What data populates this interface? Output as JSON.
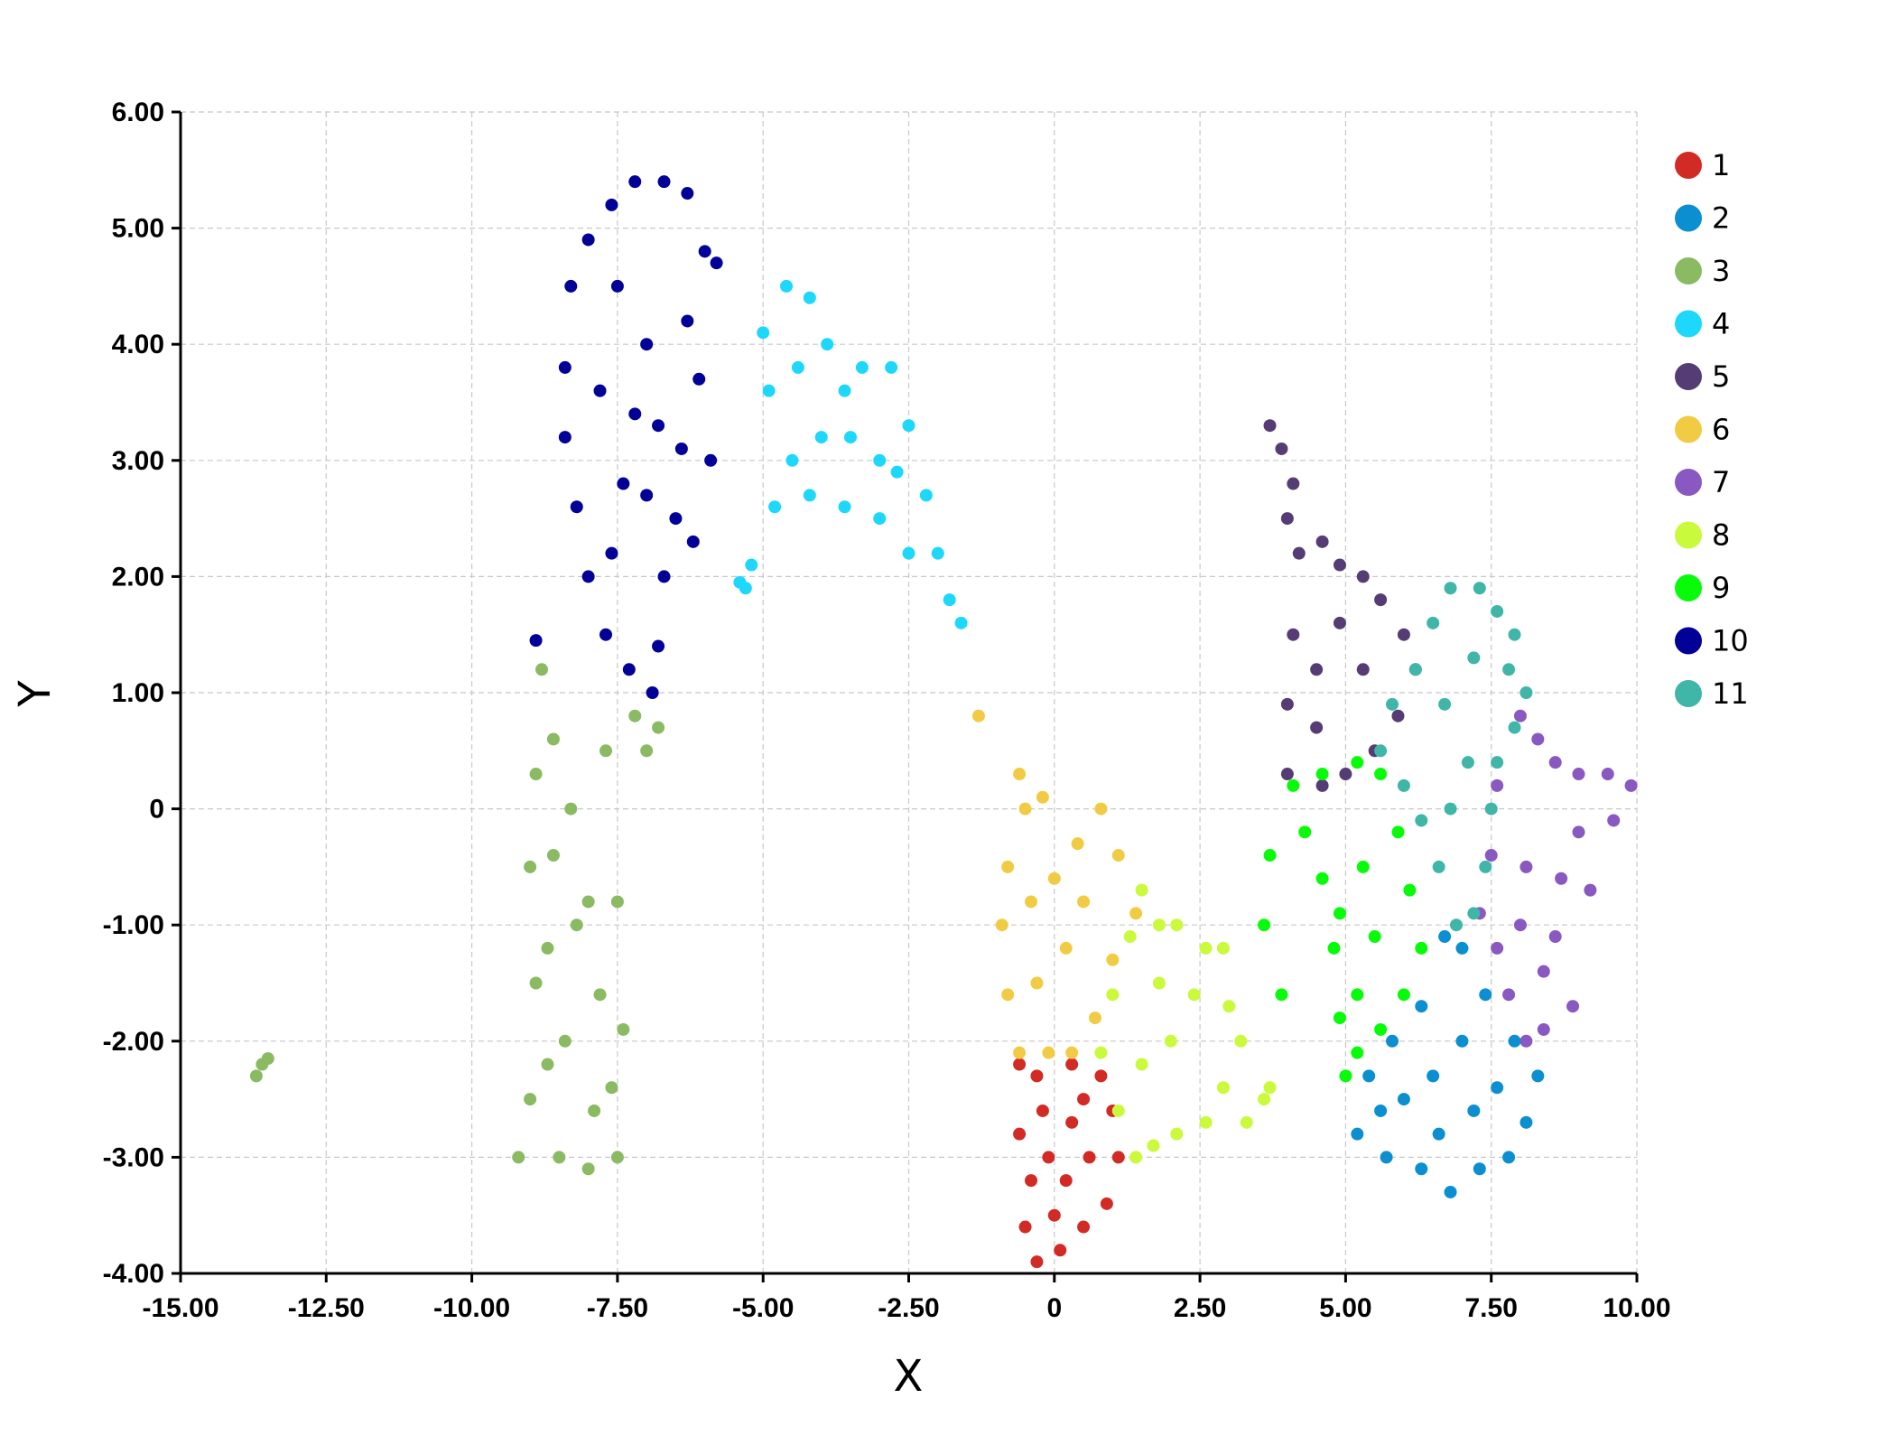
{
  "chart_data": {
    "type": "scatter",
    "title": "",
    "xlabel": "X",
    "ylabel": "Y",
    "xlim": [
      -15,
      10
    ],
    "ylim": [
      -4,
      6
    ],
    "grid": true,
    "legend_position": "right",
    "x_ticks": [
      {
        "value": -15,
        "label": "-15.00"
      },
      {
        "value": -12.5,
        "label": "-12.50"
      },
      {
        "value": -10,
        "label": "-10.00"
      },
      {
        "value": -7.5,
        "label": "-7.50"
      },
      {
        "value": -5,
        "label": "-5.00"
      },
      {
        "value": -2.5,
        "label": "-2.50"
      },
      {
        "value": 0,
        "label": "0"
      },
      {
        "value": 2.5,
        "label": "2.50"
      },
      {
        "value": 5,
        "label": "5.00"
      },
      {
        "value": 7.5,
        "label": "7.50"
      },
      {
        "value": 10,
        "label": "10.00"
      }
    ],
    "y_ticks": [
      {
        "value": 6,
        "label": "6.00"
      },
      {
        "value": 5,
        "label": "5.00"
      },
      {
        "value": 4,
        "label": "4.00"
      },
      {
        "value": 3,
        "label": "3.00"
      },
      {
        "value": 2,
        "label": "2.00"
      },
      {
        "value": 1,
        "label": "1.00"
      },
      {
        "value": 0,
        "label": "0"
      },
      {
        "value": -1,
        "label": "-1.00"
      },
      {
        "value": -2,
        "label": "-2.00"
      },
      {
        "value": -3,
        "label": "-3.00"
      },
      {
        "value": -4,
        "label": "-4.00"
      }
    ],
    "series": [
      {
        "name": "1",
        "color": "#d22b26",
        "points": [
          [
            -0.6,
            -2.2
          ],
          [
            -0.3,
            -2.3
          ],
          [
            0.3,
            -2.2
          ],
          [
            0.8,
            -2.3
          ],
          [
            1.0,
            -2.6
          ],
          [
            1.1,
            -3.0
          ],
          [
            0.9,
            -3.4
          ],
          [
            0.5,
            -3.6
          ],
          [
            0.1,
            -3.8
          ],
          [
            -0.3,
            -3.9
          ],
          [
            -0.5,
            -3.6
          ],
          [
            -0.4,
            -3.2
          ],
          [
            -0.6,
            -2.8
          ],
          [
            -0.2,
            -2.6
          ],
          [
            0.3,
            -2.7
          ],
          [
            0.6,
            -3.0
          ],
          [
            0.2,
            -3.2
          ],
          [
            -0.1,
            -3.0
          ],
          [
            0.0,
            -3.5
          ],
          [
            0.5,
            -2.5
          ]
        ]
      },
      {
        "name": "2",
        "color": "#0b8fd0",
        "points": [
          [
            5.2,
            -2.8
          ],
          [
            5.4,
            -2.3
          ],
          [
            5.8,
            -2.0
          ],
          [
            6.3,
            -1.7
          ],
          [
            6.7,
            -1.1
          ],
          [
            7.0,
            -1.2
          ],
          [
            7.4,
            -1.6
          ],
          [
            7.9,
            -2.0
          ],
          [
            8.3,
            -2.3
          ],
          [
            8.1,
            -2.7
          ],
          [
            7.8,
            -3.0
          ],
          [
            7.3,
            -3.1
          ],
          [
            6.8,
            -3.3
          ],
          [
            6.3,
            -3.1
          ],
          [
            5.7,
            -3.0
          ],
          [
            6.0,
            -2.5
          ],
          [
            6.5,
            -2.3
          ],
          [
            7.0,
            -2.0
          ],
          [
            7.2,
            -2.6
          ],
          [
            6.6,
            -2.8
          ],
          [
            5.6,
            -2.6
          ],
          [
            7.6,
            -2.4
          ]
        ]
      },
      {
        "name": "3",
        "color": "#8aba62",
        "points": [
          [
            -9.2,
            -3.0
          ],
          [
            -9.0,
            -2.5
          ],
          [
            -8.9,
            -1.5
          ],
          [
            -9.0,
            -0.5
          ],
          [
            -8.9,
            0.3
          ],
          [
            -8.8,
            1.2
          ],
          [
            -8.6,
            0.6
          ],
          [
            -8.3,
            0.0
          ],
          [
            -8.0,
            -0.8
          ],
          [
            -7.8,
            -1.6
          ],
          [
            -7.6,
            -2.4
          ],
          [
            -7.5,
            -3.0
          ],
          [
            -8.0,
            -3.1
          ],
          [
            -8.5,
            -3.0
          ],
          [
            -8.4,
            -2.0
          ],
          [
            -8.2,
            -1.0
          ],
          [
            -8.6,
            -0.4
          ],
          [
            -7.9,
            -2.6
          ],
          [
            -7.4,
            -1.9
          ],
          [
            -7.5,
            -0.8
          ],
          [
            -7.7,
            0.5
          ],
          [
            -7.2,
            0.8
          ],
          [
            -6.8,
            0.7
          ],
          [
            -7.0,
            0.5
          ],
          [
            -8.7,
            -2.2
          ],
          [
            -8.7,
            -1.2
          ],
          [
            -13.7,
            -2.3
          ],
          [
            -13.6,
            -2.2
          ],
          [
            -13.5,
            -2.15
          ]
        ]
      },
      {
        "name": "4",
        "color": "#1dd8fb",
        "points": [
          [
            -5.2,
            2.1
          ],
          [
            -5.3,
            1.9
          ],
          [
            -4.8,
            2.6
          ],
          [
            -4.9,
            3.6
          ],
          [
            -5.0,
            4.1
          ],
          [
            -4.6,
            4.5
          ],
          [
            -4.2,
            4.4
          ],
          [
            -3.9,
            4.0
          ],
          [
            -3.6,
            3.6
          ],
          [
            -3.3,
            3.8
          ],
          [
            -2.8,
            3.8
          ],
          [
            -2.5,
            3.3
          ],
          [
            -2.2,
            2.7
          ],
          [
            -2.0,
            2.2
          ],
          [
            -1.8,
            1.8
          ],
          [
            -1.6,
            1.6
          ],
          [
            -2.5,
            2.2
          ],
          [
            -3.0,
            2.5
          ],
          [
            -3.6,
            2.6
          ],
          [
            -4.2,
            2.7
          ],
          [
            -4.5,
            3.0
          ],
          [
            -4.0,
            3.2
          ],
          [
            -3.5,
            3.2
          ],
          [
            -3.0,
            3.0
          ],
          [
            -4.4,
            3.8
          ],
          [
            -2.7,
            2.9
          ],
          [
            -5.4,
            1.95
          ]
        ]
      },
      {
        "name": "5",
        "color": "#553c75",
        "points": [
          [
            3.7,
            3.3
          ],
          [
            3.9,
            3.1
          ],
          [
            4.1,
            2.8
          ],
          [
            4.0,
            2.5
          ],
          [
            4.2,
            2.2
          ],
          [
            4.6,
            2.3
          ],
          [
            4.9,
            2.1
          ],
          [
            5.3,
            2.0
          ],
          [
            5.6,
            1.8
          ],
          [
            6.0,
            1.5
          ],
          [
            6.2,
            1.2
          ],
          [
            5.9,
            0.8
          ],
          [
            5.5,
            0.5
          ],
          [
            5.0,
            0.3
          ],
          [
            4.6,
            0.2
          ],
          [
            4.0,
            0.3
          ],
          [
            4.0,
            0.9
          ],
          [
            4.1,
            1.5
          ],
          [
            4.5,
            1.2
          ],
          [
            4.9,
            1.6
          ],
          [
            5.3,
            1.2
          ],
          [
            4.5,
            0.7
          ]
        ]
      },
      {
        "name": "6",
        "color": "#f2cb44",
        "points": [
          [
            -0.6,
            -2.1
          ],
          [
            -0.8,
            -1.6
          ],
          [
            -0.9,
            -1.0
          ],
          [
            -0.8,
            -0.5
          ],
          [
            -0.5,
            0.0
          ],
          [
            -0.6,
            0.3
          ],
          [
            -0.2,
            0.1
          ],
          [
            0.4,
            -0.3
          ],
          [
            0.8,
            0.0
          ],
          [
            1.1,
            -0.4
          ],
          [
            1.4,
            -0.9
          ],
          [
            1.0,
            -1.3
          ],
          [
            0.7,
            -1.8
          ],
          [
            0.3,
            -2.1
          ],
          [
            -0.1,
            -2.1
          ],
          [
            -0.3,
            -1.5
          ],
          [
            0.2,
            -1.2
          ],
          [
            0.5,
            -0.8
          ],
          [
            -0.4,
            -0.8
          ],
          [
            0.0,
            -0.6
          ],
          [
            -1.3,
            0.8
          ]
        ]
      },
      {
        "name": "7",
        "color": "#8958c0",
        "points": [
          [
            8.0,
            0.8
          ],
          [
            8.3,
            0.6
          ],
          [
            8.6,
            0.4
          ],
          [
            9.0,
            0.3
          ],
          [
            9.5,
            0.3
          ],
          [
            9.9,
            0.2
          ],
          [
            9.6,
            -0.1
          ],
          [
            9.0,
            -0.2
          ],
          [
            8.7,
            -0.6
          ],
          [
            8.6,
            -1.1
          ],
          [
            8.4,
            -1.4
          ],
          [
            8.4,
            -1.9
          ],
          [
            8.1,
            -2.0
          ],
          [
            7.8,
            -1.6
          ],
          [
            7.6,
            -1.2
          ],
          [
            7.3,
            -0.9
          ],
          [
            7.5,
            -0.4
          ],
          [
            7.6,
            0.2
          ],
          [
            8.1,
            -0.5
          ],
          [
            8.0,
            -1.0
          ],
          [
            8.9,
            -1.7
          ],
          [
            9.2,
            -0.7
          ]
        ]
      },
      {
        "name": "8",
        "color": "#c9fa3b",
        "points": [
          [
            0.8,
            -2.1
          ],
          [
            1.0,
            -1.6
          ],
          [
            1.3,
            -1.1
          ],
          [
            1.5,
            -0.7
          ],
          [
            1.8,
            -1.0
          ],
          [
            2.1,
            -1.0
          ],
          [
            2.6,
            -1.2
          ],
          [
            2.9,
            -1.2
          ],
          [
            3.0,
            -1.7
          ],
          [
            3.2,
            -2.0
          ],
          [
            2.9,
            -2.4
          ],
          [
            2.6,
            -2.7
          ],
          [
            2.1,
            -2.8
          ],
          [
            1.7,
            -2.9
          ],
          [
            1.4,
            -3.0
          ],
          [
            1.1,
            -2.6
          ],
          [
            1.5,
            -2.2
          ],
          [
            2.0,
            -2.0
          ],
          [
            2.4,
            -1.6
          ],
          [
            1.8,
            -1.5
          ],
          [
            3.3,
            -2.7
          ],
          [
            3.6,
            -2.5
          ],
          [
            3.7,
            -2.4
          ]
        ]
      },
      {
        "name": "9",
        "color": "#08fb09",
        "points": [
          [
            4.1,
            0.2
          ],
          [
            4.6,
            0.3
          ],
          [
            5.2,
            0.4
          ],
          [
            5.6,
            0.3
          ],
          [
            5.9,
            -0.2
          ],
          [
            6.1,
            -0.7
          ],
          [
            6.3,
            -1.2
          ],
          [
            6.0,
            -1.6
          ],
          [
            5.6,
            -1.9
          ],
          [
            5.2,
            -2.1
          ],
          [
            5.0,
            -2.3
          ],
          [
            4.9,
            -1.8
          ],
          [
            4.8,
            -1.2
          ],
          [
            4.6,
            -0.6
          ],
          [
            4.3,
            -0.2
          ],
          [
            5.3,
            -0.5
          ],
          [
            5.5,
            -1.1
          ],
          [
            5.2,
            -1.6
          ],
          [
            4.9,
            -0.9
          ],
          [
            3.7,
            -0.4
          ],
          [
            3.6,
            -1.0
          ],
          [
            3.9,
            -1.6
          ]
        ]
      },
      {
        "name": "10",
        "color": "#010197",
        "points": [
          [
            -7.6,
            5.2
          ],
          [
            -7.2,
            5.4
          ],
          [
            -6.7,
            5.4
          ],
          [
            -6.3,
            5.3
          ],
          [
            -6.0,
            4.8
          ],
          [
            -5.8,
            4.7
          ],
          [
            -6.3,
            4.2
          ],
          [
            -6.1,
            3.7
          ],
          [
            -6.4,
            3.1
          ],
          [
            -6.5,
            2.5
          ],
          [
            -6.7,
            2.0
          ],
          [
            -6.8,
            1.4
          ],
          [
            -6.9,
            1.0
          ],
          [
            -7.3,
            1.2
          ],
          [
            -7.7,
            1.5
          ],
          [
            -8.0,
            2.0
          ],
          [
            -8.2,
            2.6
          ],
          [
            -8.4,
            3.2
          ],
          [
            -8.4,
            3.8
          ],
          [
            -8.3,
            4.5
          ],
          [
            -8.0,
            4.9
          ],
          [
            -7.5,
            4.5
          ],
          [
            -7.0,
            4.0
          ],
          [
            -7.2,
            3.4
          ],
          [
            -7.4,
            2.8
          ],
          [
            -7.6,
            2.2
          ],
          [
            -7.0,
            2.7
          ],
          [
            -6.8,
            3.3
          ],
          [
            -7.8,
            3.6
          ],
          [
            -8.9,
            1.45
          ],
          [
            -5.9,
            3.0
          ],
          [
            -6.2,
            2.3
          ]
        ]
      },
      {
        "name": "11",
        "color": "#40b6a8",
        "points": [
          [
            6.5,
            1.6
          ],
          [
            6.8,
            1.9
          ],
          [
            7.3,
            1.9
          ],
          [
            7.6,
            1.7
          ],
          [
            7.9,
            1.5
          ],
          [
            7.8,
            1.2
          ],
          [
            8.1,
            1.0
          ],
          [
            7.9,
            0.7
          ],
          [
            7.6,
            0.4
          ],
          [
            7.5,
            0.0
          ],
          [
            7.4,
            -0.5
          ],
          [
            7.2,
            -0.9
          ],
          [
            6.9,
            -1.0
          ],
          [
            6.6,
            -0.5
          ],
          [
            6.3,
            -0.1
          ],
          [
            6.0,
            0.2
          ],
          [
            5.6,
            0.5
          ],
          [
            5.8,
            0.9
          ],
          [
            6.2,
            1.2
          ],
          [
            6.7,
            0.9
          ],
          [
            7.1,
            0.4
          ],
          [
            6.8,
            0.0
          ],
          [
            7.2,
            1.3
          ]
        ]
      }
    ]
  }
}
